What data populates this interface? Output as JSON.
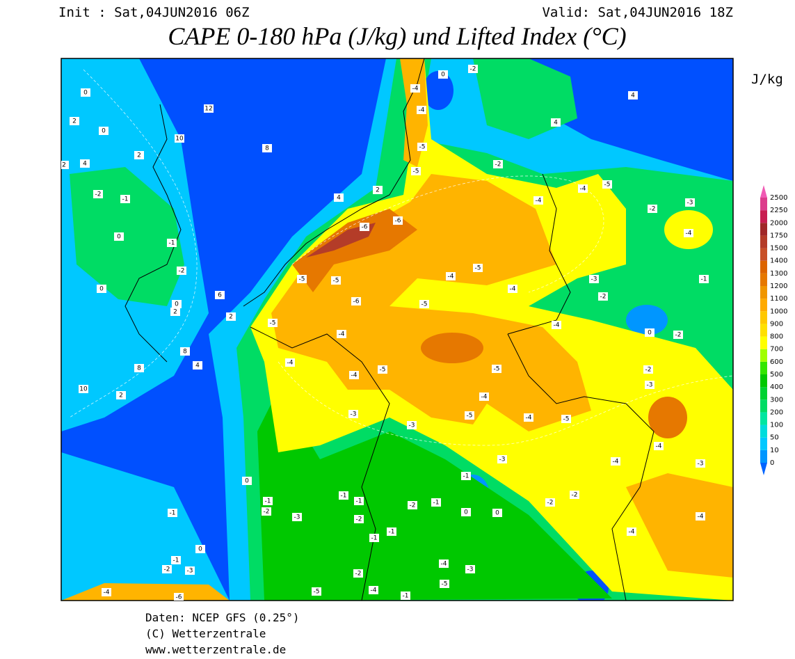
{
  "header": {
    "init": "Init : Sat,04JUN2016 06Z",
    "valid": "Valid: Sat,04JUN2016 18Z",
    "title": "CAPE 0-180 hPa (J/kg) und Lifted Index (°C)",
    "unit": "J/kg"
  },
  "colorbar": {
    "labels": [
      0,
      10,
      50,
      100,
      200,
      300,
      400,
      500,
      600,
      700,
      800,
      900,
      1000,
      1100,
      1200,
      1300,
      1400,
      1500,
      1750,
      2000,
      2250,
      2500
    ],
    "colors": [
      "#0064ff",
      "#0096ff",
      "#00c8ff",
      "#00dcdc",
      "#00e6a0",
      "#00dc64",
      "#00d232",
      "#00c800",
      "#32e600",
      "#a0ff00",
      "#ffff00",
      "#ffe000",
      "#ffc800",
      "#ffaa00",
      "#f09600",
      "#e67800",
      "#dc6400",
      "#c85028",
      "#b43c28",
      "#a02828",
      "#c81e50",
      "#dc3c8c",
      "#f05ab4"
    ]
  },
  "contour_labels": [
    0,
    2,
    0,
    12,
    10,
    8,
    4,
    2,
    -4,
    0,
    -2,
    -4,
    -5,
    -5,
    -6,
    -6,
    -5,
    -5,
    -6,
    -5,
    -4,
    -4,
    -4,
    -5,
    -3,
    -3,
    -5,
    -4,
    -5,
    -4,
    -4,
    -4,
    -5,
    -4,
    -5,
    -4,
    -5,
    -4,
    -5,
    -3,
    -3,
    -2,
    -1,
    0,
    -2,
    -2,
    -3,
    -4,
    -4,
    -3,
    -1,
    -2,
    -1,
    0,
    0,
    -2,
    -2,
    -1,
    -1,
    -2,
    -3,
    -1,
    -2,
    0,
    -1,
    0,
    -1,
    -2,
    -3,
    -5,
    -4,
    -3,
    -1,
    -1,
    -2,
    -5,
    -4,
    -1,
    -6,
    -4,
    -2,
    -1,
    0,
    -1,
    -2,
    0,
    0,
    2,
    6,
    2,
    8,
    4,
    8,
    10,
    2,
    4,
    2,
    2,
    -2,
    -3,
    -4,
    -2,
    4,
    4,
    -4,
    -4
  ],
  "footer": {
    "source": "Daten: NCEP GFS (0.25°)",
    "copyright": "(C) Wetterzentrale",
    "url": "www.wetterzentrale.de"
  }
}
